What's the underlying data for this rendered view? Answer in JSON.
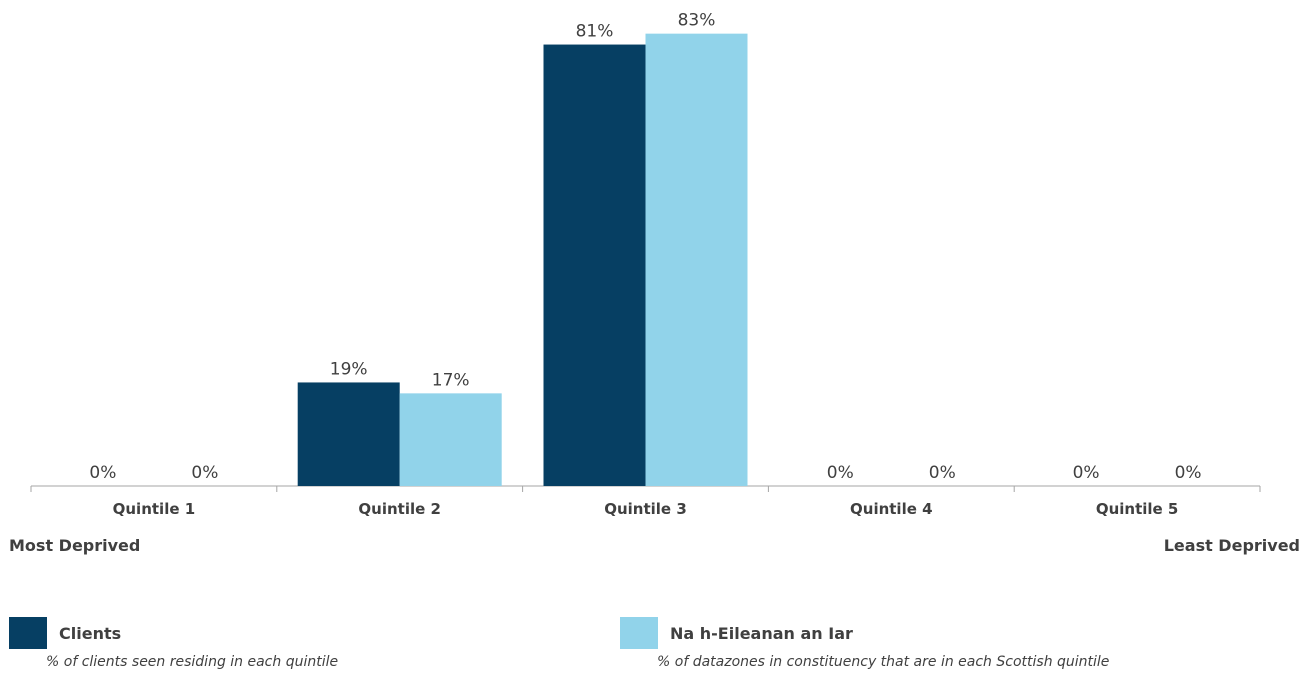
{
  "chart_data": {
    "type": "bar",
    "categories": [
      "Quintile 1",
      "Quintile 2",
      "Quintile 3",
      "Quintile 4",
      "Quintile 5"
    ],
    "series": [
      {
        "name": "Clients",
        "values": [
          0,
          19,
          81,
          0,
          0
        ],
        "labels": [
          "0%",
          "19%",
          "81%",
          "0%",
          "0%"
        ],
        "color": "#063f63"
      },
      {
        "name": "Na h-Eileanan an Iar",
        "values": [
          0,
          17,
          83,
          0,
          0
        ],
        "labels": [
          "0%",
          "17%",
          "83%",
          "0%",
          "0%"
        ],
        "color": "#91d3ea"
      }
    ],
    "ylim": [
      0,
      100
    ],
    "grid": false,
    "legend_position": "bottom",
    "axis_ends": {
      "left": "Most Deprived",
      "right": "Least Deprived"
    }
  },
  "legend": [
    {
      "name": "Clients",
      "description": "% of clients seen residing in each quintile",
      "color": "#063f63"
    },
    {
      "name": "Na h-Eileanan an Iar",
      "description": "% of datazones in constituency that are in each Scottish quintile",
      "color": "#91d3ea"
    }
  ]
}
